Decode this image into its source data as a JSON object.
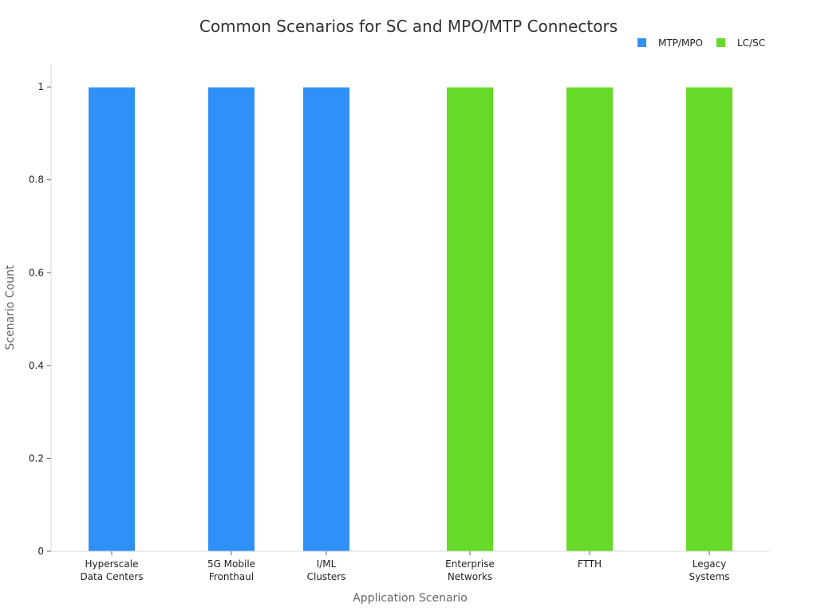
{
  "chart_data": {
    "type": "bar",
    "title": "Common Scenarios for SC and MPO/MTP Connectors",
    "xlabel": "Application Scenario",
    "ylabel": "Scenario Count",
    "ylim": [
      0,
      1.05
    ],
    "yticks": [
      0,
      0.2,
      0.4,
      0.6,
      0.8,
      1
    ],
    "ytick_labels": [
      "0",
      "0.2",
      "0.4",
      "0.6",
      "0.8",
      "1"
    ],
    "grid": false,
    "legend_position": "top-right",
    "categories": [
      [
        "Hyperscale",
        "Data Centers"
      ],
      [
        "5G Mobile",
        "Fronthaul"
      ],
      [
        "I/ML",
        "Clusters"
      ],
      [
        "Enterprise",
        "Networks"
      ],
      [
        "FTTH"
      ],
      [
        "Legacy",
        "Systems"
      ]
    ],
    "series": [
      {
        "name": "MTP/MPO",
        "color": "#2f91f8",
        "values": [
          1,
          1,
          1,
          0,
          0,
          0
        ]
      },
      {
        "name": "LC/SC",
        "color": "#67d928",
        "values": [
          0,
          0,
          0,
          1,
          1,
          1
        ]
      }
    ]
  }
}
